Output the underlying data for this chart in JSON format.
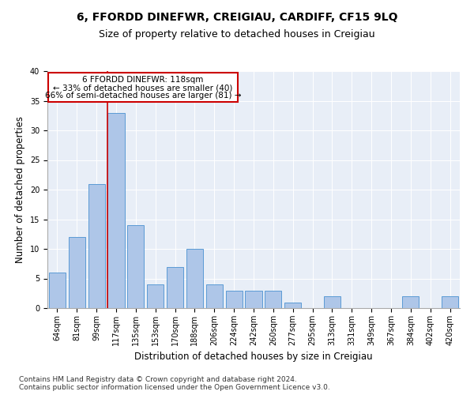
{
  "title": "6, FFORDD DINEFWR, CREIGIAU, CARDIFF, CF15 9LQ",
  "subtitle": "Size of property relative to detached houses in Creigiau",
  "xlabel": "Distribution of detached houses by size in Creigiau",
  "ylabel": "Number of detached properties",
  "categories": [
    "64sqm",
    "81sqm",
    "99sqm",
    "117sqm",
    "135sqm",
    "153sqm",
    "170sqm",
    "188sqm",
    "206sqm",
    "224sqm",
    "242sqm",
    "260sqm",
    "277sqm",
    "295sqm",
    "313sqm",
    "331sqm",
    "349sqm",
    "367sqm",
    "384sqm",
    "402sqm",
    "420sqm"
  ],
  "values": [
    6,
    12,
    21,
    33,
    14,
    4,
    7,
    10,
    4,
    3,
    3,
    3,
    1,
    0,
    2,
    0,
    0,
    0,
    2,
    0,
    2
  ],
  "bar_color": "#aec6e8",
  "bar_edge_color": "#5b9bd5",
  "red_line_index": 3,
  "annotation_title": "6 FFORDD DINEFWR: 118sqm",
  "annotation_line1": "← 33% of detached houses are smaller (40)",
  "annotation_line2": "66% of semi-detached houses are larger (81) →",
  "annotation_box_color": "#ffffff",
  "annotation_box_edge": "#cc0000",
  "ylim": [
    0,
    40
  ],
  "yticks": [
    0,
    5,
    10,
    15,
    20,
    25,
    30,
    35,
    40
  ],
  "background_color": "#e8eef7",
  "footer": "Contains HM Land Registry data © Crown copyright and database right 2024.\nContains public sector information licensed under the Open Government Licence v3.0.",
  "title_fontsize": 10,
  "subtitle_fontsize": 9,
  "xlabel_fontsize": 8.5,
  "ylabel_fontsize": 8.5,
  "tick_fontsize": 7,
  "footer_fontsize": 6.5,
  "ann_fontsize": 7.5
}
